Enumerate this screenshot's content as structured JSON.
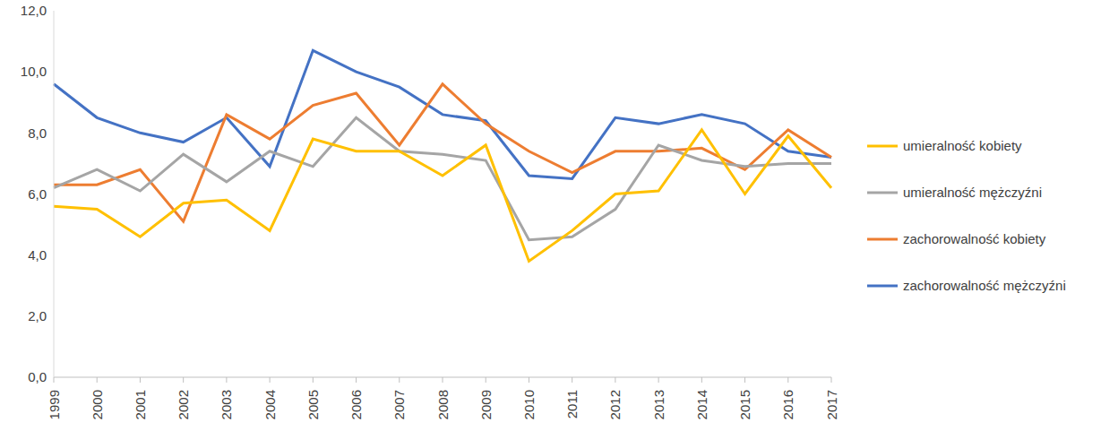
{
  "chart_data": {
    "type": "line",
    "categories": [
      "1999",
      "2000",
      "2001",
      "2002",
      "2003",
      "2004",
      "2005",
      "2006",
      "2007",
      "2008",
      "2009",
      "2010",
      "2011",
      "2012",
      "2013",
      "2014",
      "2015",
      "2016",
      "2017"
    ],
    "series": [
      {
        "name": "zachorowalność mężczyźni",
        "color": "#4472c4",
        "values": [
          9.6,
          8.5,
          8.0,
          7.7,
          8.5,
          6.9,
          10.7,
          10.0,
          9.5,
          8.6,
          8.4,
          6.6,
          6.5,
          8.5,
          8.3,
          8.6,
          8.3,
          7.4,
          7.2
        ]
      },
      {
        "name": "zachorowalność kobiety",
        "color": "#ed7d31",
        "values": [
          6.3,
          6.3,
          6.8,
          5.1,
          8.6,
          7.8,
          8.9,
          9.3,
          7.6,
          9.6,
          8.3,
          7.4,
          6.7,
          7.4,
          7.4,
          7.5,
          6.8,
          8.1,
          7.2
        ]
      },
      {
        "name": "umieralność mężczyźni",
        "color": "#a5a5a5",
        "values": [
          6.2,
          6.8,
          6.1,
          7.3,
          6.4,
          7.4,
          6.9,
          8.5,
          7.4,
          7.3,
          7.1,
          4.5,
          4.6,
          5.5,
          7.6,
          7.1,
          6.9,
          7.0,
          7.0
        ]
      },
      {
        "name": "umieralność kobiety",
        "color": "#ffc000",
        "values": [
          5.6,
          5.5,
          4.6,
          5.7,
          5.8,
          4.8,
          7.8,
          7.4,
          7.4,
          6.6,
          7.6,
          3.8,
          4.8,
          6.0,
          6.1,
          8.1,
          6.0,
          7.9,
          6.2
        ]
      }
    ],
    "ylim": [
      0,
      12
    ],
    "yticks": [
      {
        "value": 0,
        "label": "0,0"
      },
      {
        "value": 2,
        "label": "2,0"
      },
      {
        "value": 4,
        "label": "4,0"
      },
      {
        "value": 6,
        "label": "6,0"
      },
      {
        "value": 8,
        "label": "8,0"
      },
      {
        "value": 10,
        "label": "10,0"
      },
      {
        "value": 12,
        "label": "12,0"
      }
    ],
    "grid": false,
    "legend": "right",
    "marker": "none"
  }
}
